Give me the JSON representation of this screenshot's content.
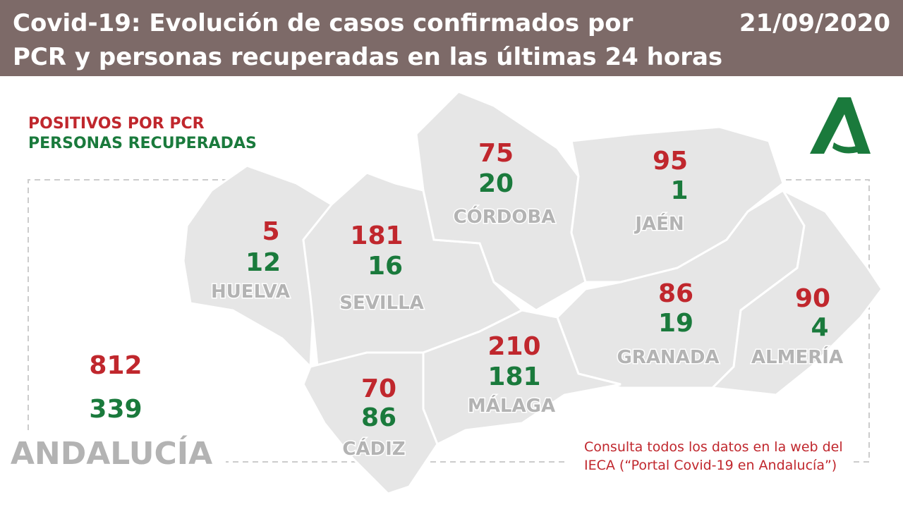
{
  "header": {
    "title_lines": [
      "Covid-19: Evolución de casos confirmados por",
      "PCR y personas recuperadas en las últimas 24 horas"
    ],
    "date": "21/09/2020"
  },
  "legend": {
    "positives": "POSITIVOS POR PCR",
    "recovered": "PERSONAS RECUPERADAS"
  },
  "provinces": [
    {
      "name": "HUELVA",
      "positives": 5,
      "recovered": 12
    },
    {
      "name": "SEVILLA",
      "positives": 181,
      "recovered": 16
    },
    {
      "name": "CÓRDOBA",
      "positives": 75,
      "recovered": 20
    },
    {
      "name": "JAÉN",
      "positives": 95,
      "recovered": 1
    },
    {
      "name": "GRANADA",
      "positives": 86,
      "recovered": 19
    },
    {
      "name": "ALMERÍA",
      "positives": 90,
      "recovered": 4
    },
    {
      "name": "MÁLAGA",
      "positives": 210,
      "recovered": 181
    },
    {
      "name": "CÁDIZ",
      "positives": 70,
      "recovered": 86
    }
  ],
  "total": {
    "name": "ANDALUCÍA",
    "positives": 812,
    "recovered": 339
  },
  "footnote_lines": [
    "Consulta todos los datos en la web del",
    "IECA (“Portal Covid-19 en Andalucía”)"
  ]
}
